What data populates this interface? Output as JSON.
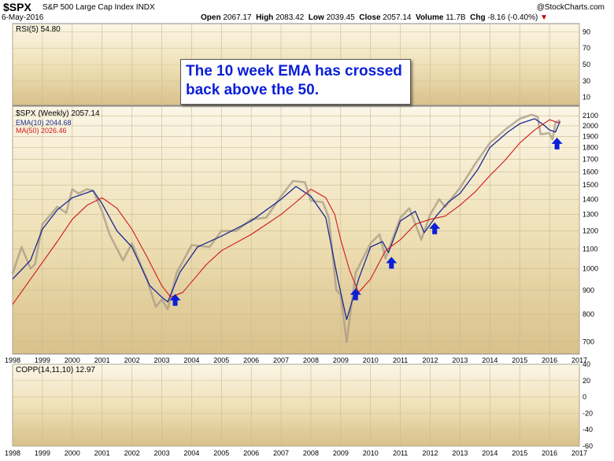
{
  "header": {
    "symbol": "$SPX",
    "description": "S&P 500 Large Cap Index  INDX",
    "date": "6-May-2016",
    "brand": "@StockCharts.com",
    "open_label": "Open",
    "open": "2067.17",
    "high_label": "High",
    "high": "2083.42",
    "low_label": "Low",
    "low": "2039.45",
    "close_label": "Close",
    "close": "2057.14",
    "volume_label": "Volume",
    "volume": "11.7B",
    "chg_label": "Chg",
    "chg": "-8.16 (-0.40%)",
    "chg_arrow": "▼"
  },
  "annotation": "The 10  week EMA has crossed back above the 50.",
  "colors": {
    "price": "#a89a86",
    "ema": "#1a2a8f",
    "ma": "#d01818",
    "arrow": "#0a1fd6",
    "panel_bg": "#e6d3a0"
  },
  "chart_data": [
    {
      "type": "line",
      "panel": "RSI",
      "title": "RSI(5) 54.80",
      "ylim": [
        0,
        100
      ],
      "yticks": [
        "90",
        "70",
        "50",
        "30",
        "10"
      ],
      "series": []
    },
    {
      "type": "line",
      "panel": "price",
      "title": "$SPX (Weekly) 2057.14",
      "legend": [
        "EMA(10) 2044.68",
        "MA(50) 2026.46"
      ],
      "yscale": "log",
      "ylim": [
        660,
        2200
      ],
      "yticks": [
        2100,
        2000,
        1900,
        1800,
        1700,
        1600,
        1500,
        1400,
        1300,
        1200,
        1100,
        1000,
        900,
        800,
        700
      ],
      "xlim": [
        1998.0,
        2017.0
      ],
      "xticks": [
        "1998",
        "1999",
        "2000",
        "2001",
        "2002",
        "2003",
        "2004",
        "2005",
        "2006",
        "2007",
        "2008",
        "2009",
        "2010",
        "2011",
        "2012",
        "2013",
        "2014",
        "2015",
        "2016",
        "2017"
      ],
      "series": [
        {
          "name": "$SPX",
          "x": [
            1998.0,
            1998.3,
            1998.6,
            1998.75,
            1999.0,
            1999.5,
            1999.8,
            2000.0,
            2000.2,
            2000.5,
            2000.7,
            2001.0,
            2001.25,
            2001.7,
            2002.0,
            2002.5,
            2002.8,
            2003.0,
            2003.2,
            2003.5,
            2004.0,
            2004.6,
            2005.0,
            2005.5,
            2006.0,
            2006.5,
            2007.0,
            2007.4,
            2007.8,
            2008.0,
            2008.4,
            2008.6,
            2008.85,
            2009.0,
            2009.2,
            2009.5,
            2010.0,
            2010.3,
            2010.5,
            2011.0,
            2011.3,
            2011.7,
            2012.0,
            2012.3,
            2012.5,
            2013.0,
            2013.5,
            2014.0,
            2014.5,
            2015.0,
            2015.4,
            2015.6,
            2015.7,
            2016.0,
            2016.1,
            2016.2,
            2016.35
          ],
          "values": [
            975,
            1110,
            1000,
            1020,
            1240,
            1350,
            1310,
            1470,
            1440,
            1470,
            1460,
            1320,
            1180,
            1040,
            1130,
            950,
            830,
            860,
            820,
            980,
            1120,
            1110,
            1200,
            1200,
            1270,
            1280,
            1420,
            1530,
            1520,
            1390,
            1380,
            1280,
            900,
            880,
            700,
            980,
            1130,
            1180,
            1050,
            1280,
            1340,
            1150,
            1300,
            1400,
            1350,
            1480,
            1660,
            1840,
            1960,
            2070,
            2110,
            2090,
            1920,
            1930,
            1870,
            2030,
            2057
          ]
        },
        {
          "name": "EMA(10) 2044.68",
          "x": [
            1998.0,
            1998.6,
            1999.0,
            1999.5,
            2000.0,
            2000.7,
            2001.0,
            2001.5,
            2002.0,
            2002.6,
            2003.0,
            2003.2,
            2003.6,
            2004.2,
            2005.0,
            2006.0,
            2007.0,
            2007.5,
            2008.0,
            2008.5,
            2008.9,
            2009.2,
            2009.6,
            2010.0,
            2010.4,
            2010.6,
            2011.0,
            2011.5,
            2011.8,
            2012.2,
            2012.6,
            2013.0,
            2013.6,
            2014.0,
            2014.6,
            2015.0,
            2015.5,
            2015.8,
            2016.0,
            2016.2,
            2016.35
          ],
          "values": [
            950,
            1040,
            1210,
            1330,
            1410,
            1460,
            1370,
            1200,
            1110,
            920,
            870,
            850,
            980,
            1110,
            1170,
            1260,
            1400,
            1490,
            1420,
            1280,
            950,
            780,
            950,
            1110,
            1140,
            1080,
            1260,
            1320,
            1190,
            1290,
            1380,
            1440,
            1620,
            1800,
            1940,
            2020,
            2070,
            2010,
            1960,
            1940,
            2044
          ]
        },
        {
          "name": "MA(50) 2026.46",
          "x": [
            1998.0,
            1998.5,
            1999.0,
            1999.5,
            2000.0,
            2000.5,
            2001.0,
            2001.5,
            2002.0,
            2002.5,
            2003.0,
            2003.3,
            2003.7,
            2004.5,
            2005.0,
            2006.0,
            2007.0,
            2007.5,
            2008.0,
            2008.5,
            2008.8,
            2009.0,
            2009.3,
            2009.6,
            2010.0,
            2010.5,
            2011.0,
            2011.5,
            2012.0,
            2012.5,
            2013.0,
            2013.5,
            2014.0,
            2014.5,
            2015.0,
            2015.5,
            2016.0,
            2016.35
          ],
          "values": [
            840,
            930,
            1030,
            1140,
            1270,
            1360,
            1410,
            1340,
            1210,
            1060,
            920,
            870,
            890,
            1020,
            1090,
            1180,
            1300,
            1380,
            1470,
            1410,
            1300,
            1150,
            990,
            890,
            950,
            1090,
            1150,
            1240,
            1270,
            1290,
            1360,
            1450,
            1570,
            1690,
            1840,
            1960,
            2060,
            2026
          ]
        }
      ],
      "annotations": [
        {
          "type": "arrow-up",
          "x": 2003.45
        },
        {
          "type": "arrow-up",
          "x": 2009.5
        },
        {
          "type": "arrow-up",
          "x": 2010.7
        },
        {
          "type": "arrow-up",
          "x": 2012.15
        },
        {
          "type": "arrow-up",
          "x": 2016.25
        }
      ]
    },
    {
      "type": "line",
      "panel": "COPP",
      "title": "COPP(14,11,10) 12.97",
      "ylim": [
        -60,
        40
      ],
      "yticks": [
        40,
        20,
        0,
        -20,
        -40,
        -60
      ],
      "series": []
    }
  ]
}
